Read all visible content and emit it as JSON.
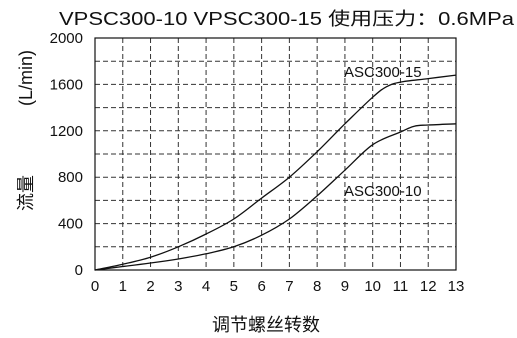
{
  "chart_data": {
    "type": "line",
    "title": "VPSC300-10 VPSC300-15 使用压力：0.6MPa",
    "xlabel": "调节螺丝转数",
    "ylabel": "流量",
    "yunit": "(L/min)",
    "xlim": [
      0,
      13
    ],
    "ylim": [
      0,
      2000
    ],
    "x_ticks": [
      0,
      1,
      2,
      3,
      4,
      5,
      6,
      7,
      8,
      9,
      10,
      11,
      12,
      13
    ],
    "y_ticks": [
      0,
      400,
      800,
      1200,
      1600,
      2000
    ],
    "grid": {
      "show": true,
      "style": "dashed",
      "x_step": 1,
      "y_step": 200
    },
    "series": [
      {
        "name": "ASC300-15",
        "x": [
          0,
          1,
          2,
          3,
          4,
          5,
          6,
          7,
          8,
          9,
          10,
          10.5,
          11,
          12,
          13
        ],
        "y": [
          0,
          50,
          110,
          200,
          310,
          440,
          620,
          800,
          1020,
          1260,
          1490,
          1580,
          1620,
          1650,
          1680
        ]
      },
      {
        "name": "ASC300-10",
        "x": [
          0,
          1,
          2,
          3,
          4,
          5,
          6,
          7,
          8,
          9,
          10,
          11,
          11.5,
          12,
          13
        ],
        "y": [
          0,
          30,
          60,
          95,
          140,
          200,
          300,
          440,
          640,
          860,
          1080,
          1190,
          1240,
          1250,
          1260
        ]
      }
    ]
  },
  "colors": {
    "line": "#111111",
    "grid": "#333333",
    "text": "#111111",
    "background": "#ffffff"
  }
}
